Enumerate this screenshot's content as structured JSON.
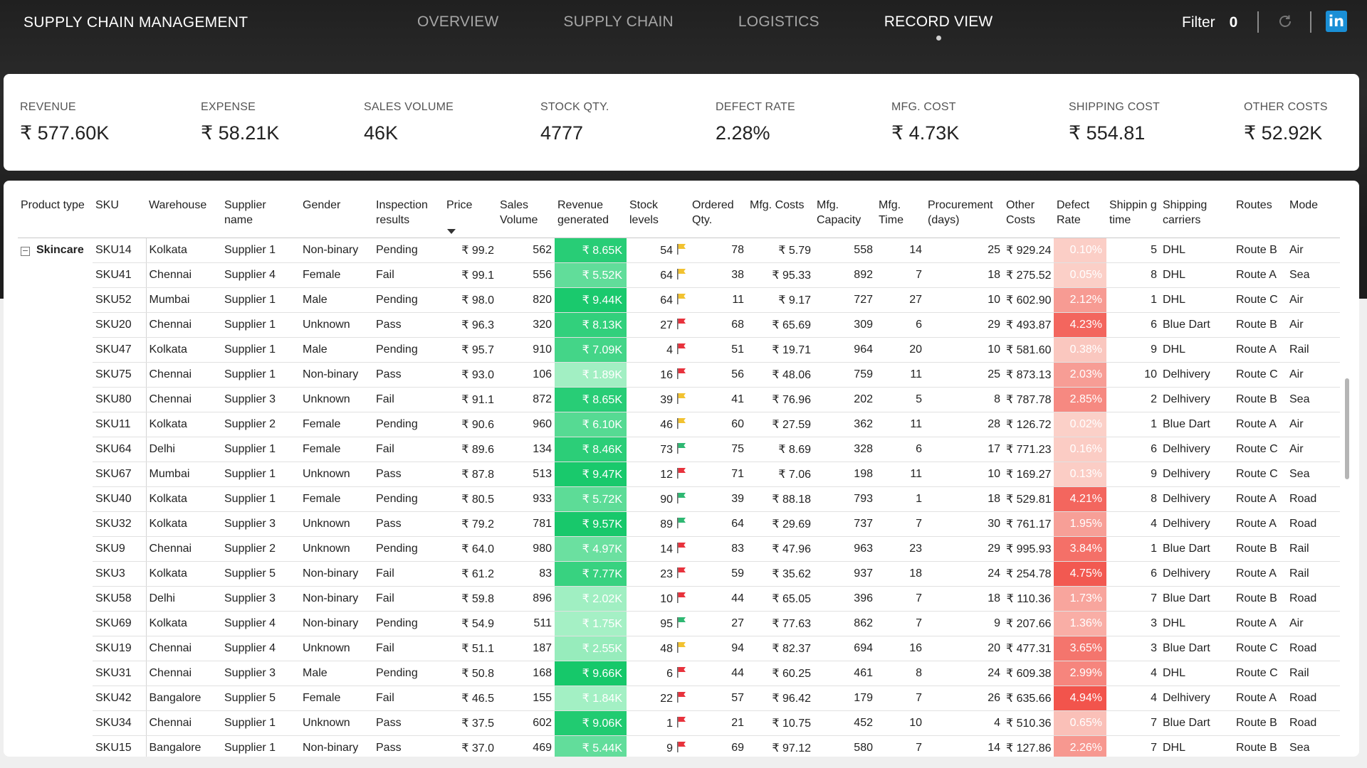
{
  "header": {
    "title": "SUPPLY CHAIN MANAGEMENT",
    "tabs": [
      {
        "label": "OVERVIEW",
        "active": false
      },
      {
        "label": "SUPPLY CHAIN",
        "active": false
      },
      {
        "label": "LOGISTICS",
        "active": false
      },
      {
        "label": "RECORD VIEW",
        "active": true
      }
    ],
    "filter_label": "Filter",
    "filter_count": "0",
    "icons": [
      "refresh-icon",
      "linkedin-icon"
    ],
    "linkedin_glyph": "in"
  },
  "kpis": [
    {
      "label": "REVENUE",
      "value": "₹ 577.60K"
    },
    {
      "label": "EXPENSE",
      "value": "₹ 58.21K"
    },
    {
      "label": "SALES VOLUME",
      "value": "46K"
    },
    {
      "label": "STOCK QTY.",
      "value": "4777"
    },
    {
      "label": "DEFECT RATE",
      "value": "2.28%"
    },
    {
      "label": "MFG. COST",
      "value": "₹ 4.73K"
    },
    {
      "label": "SHIPPING COST",
      "value": "₹ 554.81"
    },
    {
      "label": "OTHER COSTS",
      "value": "₹ 52.92K"
    }
  ],
  "table": {
    "columns": [
      "Product type",
      "SKU",
      "Warehouse",
      "Supplier name",
      "Gender",
      "Inspection results",
      "Price",
      "Sales Volume",
      "Revenue generated",
      "Stock levels",
      "Ordered Qty.",
      "Mfg. Costs",
      "Mfg. Capacity",
      "Mfg. Time",
      "Procurement (days)",
      "Other Costs",
      "Defect Rate",
      "Shippin g time",
      "Shipping carriers",
      "Routes",
      "Mode"
    ],
    "sort_column": "Price",
    "group_label": "Skincare",
    "colors": {
      "flag_green": "#2eb872",
      "flag_yellow": "#f2c230",
      "flag_red": "#e8323c",
      "revenue_low": "#a5f0c5",
      "revenue_high": "#16c86a",
      "defect_low": "#fbd0c8",
      "defect_high": "#f2544c"
    },
    "rows": [
      {
        "sku": "SKU14",
        "warehouse": "Kolkata",
        "supplier": "Supplier 1",
        "gender": "Non-binary",
        "inspection": "Pending",
        "price": "₹ 99.2",
        "sales": "562",
        "revenue": "₹ 8.65K",
        "revenue_num": 8.65,
        "stock": "54",
        "flag": "yellow",
        "ordered": "78",
        "mfg_cost": "₹ 5.79",
        "capacity": "558",
        "mfg_time": "14",
        "procurement": "25",
        "other": "₹ 929.24",
        "defect": "0.10%",
        "defect_num": 0.1,
        "ship_time": "5",
        "carrier": "DHL",
        "route": "Route B",
        "mode": "Air"
      },
      {
        "sku": "SKU41",
        "warehouse": "Chennai",
        "supplier": "Supplier 4",
        "gender": "Female",
        "inspection": "Fail",
        "price": "₹ 99.1",
        "sales": "556",
        "revenue": "₹ 5.52K",
        "revenue_num": 5.52,
        "stock": "64",
        "flag": "yellow",
        "ordered": "38",
        "mfg_cost": "₹ 95.33",
        "capacity": "892",
        "mfg_time": "7",
        "procurement": "18",
        "other": "₹ 275.52",
        "defect": "0.05%",
        "defect_num": 0.05,
        "ship_time": "8",
        "carrier": "DHL",
        "route": "Route A",
        "mode": "Sea"
      },
      {
        "sku": "SKU52",
        "warehouse": "Mumbai",
        "supplier": "Supplier 1",
        "gender": "Male",
        "inspection": "Pending",
        "price": "₹ 98.0",
        "sales": "820",
        "revenue": "₹ 9.44K",
        "revenue_num": 9.44,
        "stock": "64",
        "flag": "yellow",
        "ordered": "11",
        "mfg_cost": "₹ 9.17",
        "capacity": "727",
        "mfg_time": "27",
        "procurement": "10",
        "other": "₹ 602.90",
        "defect": "2.12%",
        "defect_num": 2.12,
        "ship_time": "1",
        "carrier": "DHL",
        "route": "Route C",
        "mode": "Air"
      },
      {
        "sku": "SKU20",
        "warehouse": "Chennai",
        "supplier": "Supplier 1",
        "gender": "Unknown",
        "inspection": "Pass",
        "price": "₹ 96.3",
        "sales": "320",
        "revenue": "₹ 8.13K",
        "revenue_num": 8.13,
        "stock": "27",
        "flag": "red",
        "ordered": "68",
        "mfg_cost": "₹ 65.69",
        "capacity": "309",
        "mfg_time": "6",
        "procurement": "29",
        "other": "₹ 493.87",
        "defect": "4.23%",
        "defect_num": 4.23,
        "ship_time": "6",
        "carrier": "Blue Dart",
        "route": "Route B",
        "mode": "Air"
      },
      {
        "sku": "SKU47",
        "warehouse": "Kolkata",
        "supplier": "Supplier 1",
        "gender": "Male",
        "inspection": "Pending",
        "price": "₹ 95.7",
        "sales": "910",
        "revenue": "₹ 7.09K",
        "revenue_num": 7.09,
        "stock": "4",
        "flag": "red",
        "ordered": "51",
        "mfg_cost": "₹ 19.71",
        "capacity": "964",
        "mfg_time": "20",
        "procurement": "10",
        "other": "₹ 581.60",
        "defect": "0.38%",
        "defect_num": 0.38,
        "ship_time": "9",
        "carrier": "DHL",
        "route": "Route A",
        "mode": "Rail"
      },
      {
        "sku": "SKU75",
        "warehouse": "Chennai",
        "supplier": "Supplier 1",
        "gender": "Non-binary",
        "inspection": "Pass",
        "price": "₹ 93.0",
        "sales": "106",
        "revenue": "₹ 1.89K",
        "revenue_num": 1.89,
        "stock": "16",
        "flag": "red",
        "ordered": "56",
        "mfg_cost": "₹ 48.06",
        "capacity": "759",
        "mfg_time": "11",
        "procurement": "25",
        "other": "₹ 873.13",
        "defect": "2.03%",
        "defect_num": 2.03,
        "ship_time": "10",
        "carrier": "Delhivery",
        "route": "Route C",
        "mode": "Air"
      },
      {
        "sku": "SKU80",
        "warehouse": "Chennai",
        "supplier": "Supplier 3",
        "gender": "Unknown",
        "inspection": "Fail",
        "price": "₹ 91.1",
        "sales": "872",
        "revenue": "₹ 8.65K",
        "revenue_num": 8.65,
        "stock": "39",
        "flag": "yellow",
        "ordered": "41",
        "mfg_cost": "₹ 76.96",
        "capacity": "202",
        "mfg_time": "5",
        "procurement": "8",
        "other": "₹ 787.78",
        "defect": "2.85%",
        "defect_num": 2.85,
        "ship_time": "2",
        "carrier": "Delhivery",
        "route": "Route B",
        "mode": "Sea"
      },
      {
        "sku": "SKU11",
        "warehouse": "Kolkata",
        "supplier": "Supplier 2",
        "gender": "Female",
        "inspection": "Pending",
        "price": "₹ 90.6",
        "sales": "960",
        "revenue": "₹ 6.10K",
        "revenue_num": 6.1,
        "stock": "46",
        "flag": "yellow",
        "ordered": "60",
        "mfg_cost": "₹ 27.59",
        "capacity": "362",
        "mfg_time": "11",
        "procurement": "28",
        "other": "₹ 126.72",
        "defect": "0.02%",
        "defect_num": 0.02,
        "ship_time": "1",
        "carrier": "Blue Dart",
        "route": "Route A",
        "mode": "Air"
      },
      {
        "sku": "SKU64",
        "warehouse": "Delhi",
        "supplier": "Supplier 1",
        "gender": "Female",
        "inspection": "Fail",
        "price": "₹ 89.6",
        "sales": "134",
        "revenue": "₹ 8.46K",
        "revenue_num": 8.46,
        "stock": "73",
        "flag": "green",
        "ordered": "75",
        "mfg_cost": "₹ 8.69",
        "capacity": "328",
        "mfg_time": "6",
        "procurement": "17",
        "other": "₹ 771.23",
        "defect": "0.16%",
        "defect_num": 0.16,
        "ship_time": "6",
        "carrier": "Delhivery",
        "route": "Route C",
        "mode": "Air"
      },
      {
        "sku": "SKU67",
        "warehouse": "Mumbai",
        "supplier": "Supplier 1",
        "gender": "Unknown",
        "inspection": "Pass",
        "price": "₹ 87.8",
        "sales": "513",
        "revenue": "₹ 9.47K",
        "revenue_num": 9.47,
        "stock": "12",
        "flag": "red",
        "ordered": "71",
        "mfg_cost": "₹ 7.06",
        "capacity": "198",
        "mfg_time": "11",
        "procurement": "10",
        "other": "₹ 169.27",
        "defect": "0.13%",
        "defect_num": 0.13,
        "ship_time": "9",
        "carrier": "Delhivery",
        "route": "Route C",
        "mode": "Sea"
      },
      {
        "sku": "SKU40",
        "warehouse": "Kolkata",
        "supplier": "Supplier 1",
        "gender": "Female",
        "inspection": "Pending",
        "price": "₹ 80.5",
        "sales": "933",
        "revenue": "₹ 5.72K",
        "revenue_num": 5.72,
        "stock": "90",
        "flag": "green",
        "ordered": "39",
        "mfg_cost": "₹ 88.18",
        "capacity": "793",
        "mfg_time": "1",
        "procurement": "18",
        "other": "₹ 529.81",
        "defect": "4.21%",
        "defect_num": 4.21,
        "ship_time": "8",
        "carrier": "Delhivery",
        "route": "Route A",
        "mode": "Road"
      },
      {
        "sku": "SKU32",
        "warehouse": "Kolkata",
        "supplier": "Supplier 3",
        "gender": "Unknown",
        "inspection": "Pass",
        "price": "₹ 79.2",
        "sales": "781",
        "revenue": "₹ 9.57K",
        "revenue_num": 9.57,
        "stock": "89",
        "flag": "green",
        "ordered": "64",
        "mfg_cost": "₹ 29.69",
        "capacity": "737",
        "mfg_time": "7",
        "procurement": "30",
        "other": "₹ 761.17",
        "defect": "1.95%",
        "defect_num": 1.95,
        "ship_time": "4",
        "carrier": "Delhivery",
        "route": "Route A",
        "mode": "Road"
      },
      {
        "sku": "SKU9",
        "warehouse": "Chennai",
        "supplier": "Supplier 2",
        "gender": "Unknown",
        "inspection": "Pending",
        "price": "₹ 64.0",
        "sales": "980",
        "revenue": "₹ 4.97K",
        "revenue_num": 4.97,
        "stock": "14",
        "flag": "red",
        "ordered": "83",
        "mfg_cost": "₹ 47.96",
        "capacity": "963",
        "mfg_time": "23",
        "procurement": "29",
        "other": "₹ 995.93",
        "defect": "3.84%",
        "defect_num": 3.84,
        "ship_time": "1",
        "carrier": "Blue Dart",
        "route": "Route B",
        "mode": "Rail"
      },
      {
        "sku": "SKU3",
        "warehouse": "Kolkata",
        "supplier": "Supplier 5",
        "gender": "Non-binary",
        "inspection": "Fail",
        "price": "₹ 61.2",
        "sales": "83",
        "revenue": "₹ 7.77K",
        "revenue_num": 7.77,
        "stock": "23",
        "flag": "red",
        "ordered": "59",
        "mfg_cost": "₹ 35.62",
        "capacity": "937",
        "mfg_time": "18",
        "procurement": "24",
        "other": "₹ 254.78",
        "defect": "4.75%",
        "defect_num": 4.75,
        "ship_time": "6",
        "carrier": "Delhivery",
        "route": "Route A",
        "mode": "Rail"
      },
      {
        "sku": "SKU58",
        "warehouse": "Delhi",
        "supplier": "Supplier 3",
        "gender": "Non-binary",
        "inspection": "Fail",
        "price": "₹ 59.8",
        "sales": "896",
        "revenue": "₹ 2.02K",
        "revenue_num": 2.02,
        "stock": "10",
        "flag": "red",
        "ordered": "44",
        "mfg_cost": "₹ 65.05",
        "capacity": "396",
        "mfg_time": "7",
        "procurement": "18",
        "other": "₹ 110.36",
        "defect": "1.73%",
        "defect_num": 1.73,
        "ship_time": "7",
        "carrier": "Blue Dart",
        "route": "Route B",
        "mode": "Road"
      },
      {
        "sku": "SKU69",
        "warehouse": "Kolkata",
        "supplier": "Supplier 4",
        "gender": "Non-binary",
        "inspection": "Pending",
        "price": "₹ 54.9",
        "sales": "511",
        "revenue": "₹ 1.75K",
        "revenue_num": 1.75,
        "stock": "95",
        "flag": "green",
        "ordered": "27",
        "mfg_cost": "₹ 77.63",
        "capacity": "862",
        "mfg_time": "7",
        "procurement": "9",
        "other": "₹ 207.66",
        "defect": "1.36%",
        "defect_num": 1.36,
        "ship_time": "3",
        "carrier": "DHL",
        "route": "Route A",
        "mode": "Air"
      },
      {
        "sku": "SKU19",
        "warehouse": "Chennai",
        "supplier": "Supplier 4",
        "gender": "Unknown",
        "inspection": "Fail",
        "price": "₹ 51.1",
        "sales": "187",
        "revenue": "₹ 2.55K",
        "revenue_num": 2.55,
        "stock": "48",
        "flag": "yellow",
        "ordered": "94",
        "mfg_cost": "₹ 82.37",
        "capacity": "694",
        "mfg_time": "16",
        "procurement": "20",
        "other": "₹ 477.31",
        "defect": "3.65%",
        "defect_num": 3.65,
        "ship_time": "3",
        "carrier": "Blue Dart",
        "route": "Route C",
        "mode": "Road"
      },
      {
        "sku": "SKU31",
        "warehouse": "Chennai",
        "supplier": "Supplier 3",
        "gender": "Male",
        "inspection": "Pending",
        "price": "₹ 50.8",
        "sales": "168",
        "revenue": "₹ 9.66K",
        "revenue_num": 9.66,
        "stock": "6",
        "flag": "red",
        "ordered": "44",
        "mfg_cost": "₹ 60.25",
        "capacity": "461",
        "mfg_time": "8",
        "procurement": "24",
        "other": "₹ 609.38",
        "defect": "2.99%",
        "defect_num": 2.99,
        "ship_time": "4",
        "carrier": "DHL",
        "route": "Route C",
        "mode": "Rail"
      },
      {
        "sku": "SKU42",
        "warehouse": "Bangalore",
        "supplier": "Supplier 5",
        "gender": "Female",
        "inspection": "Fail",
        "price": "₹ 46.5",
        "sales": "155",
        "revenue": "₹ 1.84K",
        "revenue_num": 1.84,
        "stock": "22",
        "flag": "red",
        "ordered": "57",
        "mfg_cost": "₹ 96.42",
        "capacity": "179",
        "mfg_time": "7",
        "procurement": "26",
        "other": "₹ 635.66",
        "defect": "4.94%",
        "defect_num": 4.94,
        "ship_time": "4",
        "carrier": "Delhivery",
        "route": "Route A",
        "mode": "Road"
      },
      {
        "sku": "SKU34",
        "warehouse": "Chennai",
        "supplier": "Supplier 1",
        "gender": "Unknown",
        "inspection": "Pass",
        "price": "₹ 37.5",
        "sales": "602",
        "revenue": "₹ 9.06K",
        "revenue_num": 9.06,
        "stock": "1",
        "flag": "red",
        "ordered": "21",
        "mfg_cost": "₹ 10.75",
        "capacity": "452",
        "mfg_time": "10",
        "procurement": "4",
        "other": "₹ 510.36",
        "defect": "0.65%",
        "defect_num": 0.65,
        "ship_time": "7",
        "carrier": "Blue Dart",
        "route": "Route B",
        "mode": "Road"
      },
      {
        "sku": "SKU15",
        "warehouse": "Bangalore",
        "supplier": "Supplier 1",
        "gender": "Non-binary",
        "inspection": "Pass",
        "price": "₹ 37.0",
        "sales": "469",
        "revenue": "₹ 5.44K",
        "revenue_num": 5.44,
        "stock": "9",
        "flag": "red",
        "ordered": "69",
        "mfg_cost": "₹ 97.12",
        "capacity": "580",
        "mfg_time": "7",
        "procurement": "14",
        "other": "₹ 127.86",
        "defect": "2.26%",
        "defect_num": 2.26,
        "ship_time": "7",
        "carrier": "DHL",
        "route": "Route B",
        "mode": "Sea"
      }
    ]
  }
}
